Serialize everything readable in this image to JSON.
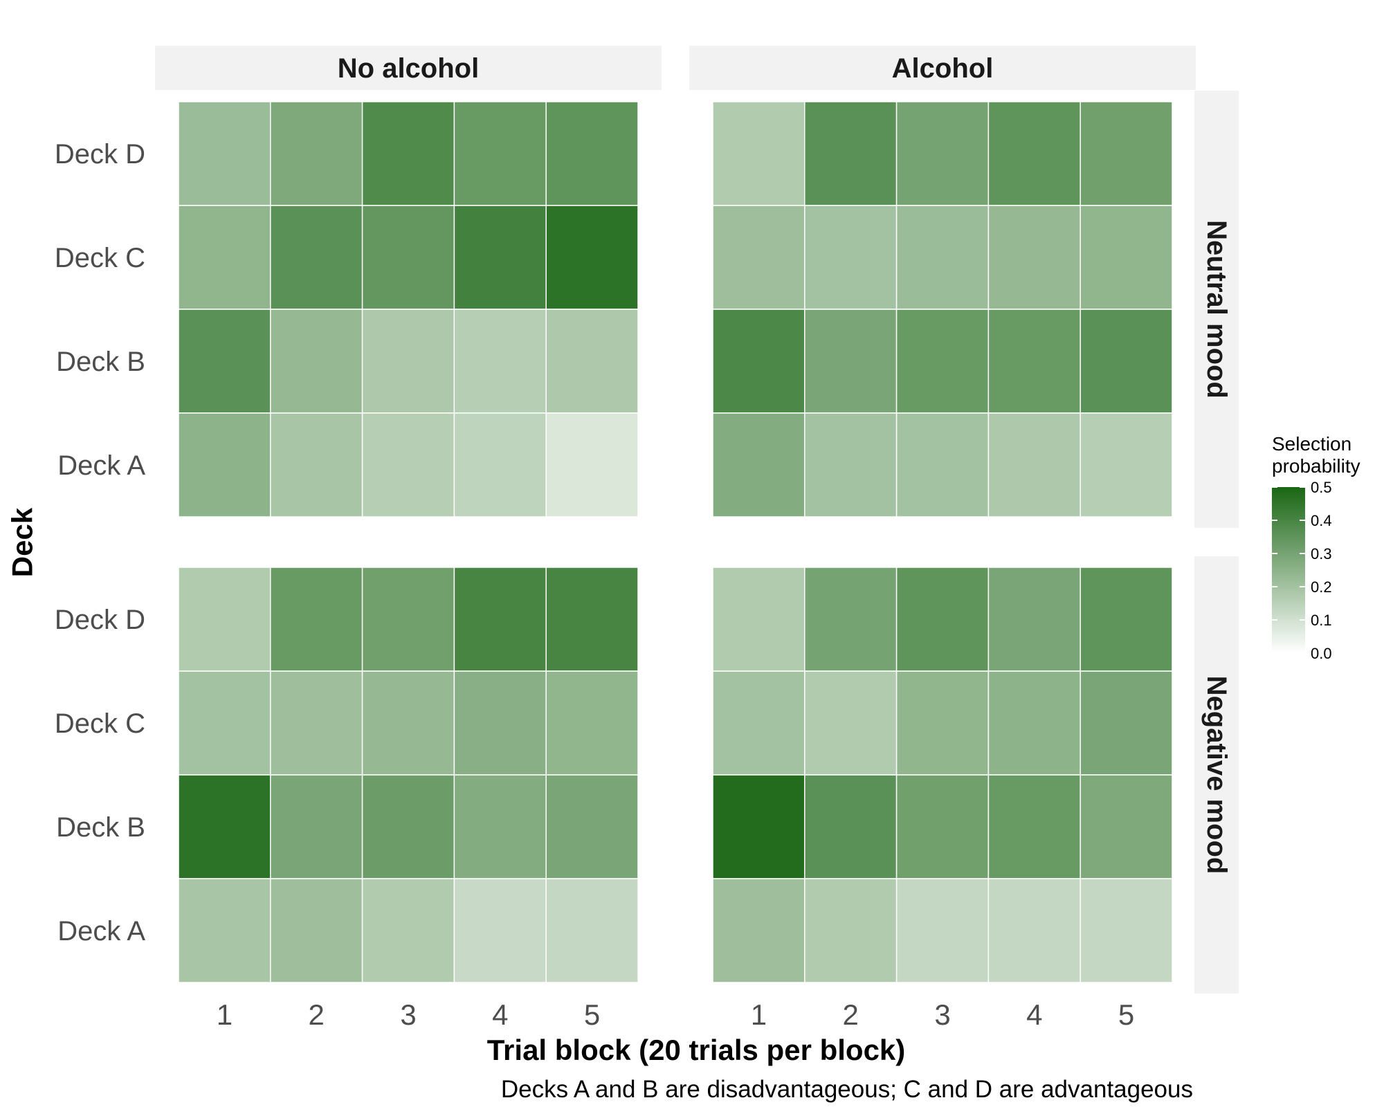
{
  "chart_data": {
    "type": "heatmap",
    "column_facets": [
      "No alcohol",
      "Alcohol"
    ],
    "row_facets": [
      "Neutral mood",
      "Negative mood"
    ],
    "x": [
      1,
      2,
      3,
      4,
      5
    ],
    "x_tick_labels": [
      "1",
      "2",
      "3",
      "4",
      "5"
    ],
    "y_categories": [
      "Deck D",
      "Deck C",
      "Deck B",
      "Deck A"
    ],
    "xlabel": "Trial block (20 trials per block)",
    "ylabel": "Deck",
    "caption": "Decks A and B are disadvantageous; C and D are advantageous",
    "legend": {
      "title_lines": [
        "Selection",
        "probability"
      ],
      "min": 0.0,
      "max": 0.5,
      "ticks": [
        0.5,
        0.4,
        0.3,
        0.2,
        0.1,
        0.0
      ],
      "tick_labels": [
        "0.5",
        "0.4",
        "0.3",
        "0.2",
        "0.1",
        "0.0"
      ],
      "placement": "right",
      "color_low": "#ffffff",
      "color_high": "#1a6614"
    },
    "grid": false,
    "panels": [
      {
        "row": "Neutral mood",
        "col": "No alcohol",
        "values": {
          "Deck D": [
            0.22,
            0.28,
            0.38,
            0.33,
            0.35
          ],
          "Deck C": [
            0.24,
            0.36,
            0.34,
            0.41,
            0.46
          ],
          "Deck B": [
            0.36,
            0.23,
            0.18,
            0.16,
            0.18
          ],
          "Deck A": [
            0.25,
            0.19,
            0.16,
            0.14,
            0.08
          ]
        }
      },
      {
        "row": "Neutral mood",
        "col": "Alcohol",
        "values": {
          "Deck D": [
            0.17,
            0.36,
            0.3,
            0.35,
            0.31
          ],
          "Deck C": [
            0.21,
            0.2,
            0.22,
            0.23,
            0.24
          ],
          "Deck B": [
            0.39,
            0.29,
            0.33,
            0.33,
            0.36
          ],
          "Deck A": [
            0.27,
            0.2,
            0.2,
            0.18,
            0.16
          ]
        }
      },
      {
        "row": "Negative mood",
        "col": "No alcohol",
        "values": {
          "Deck D": [
            0.17,
            0.33,
            0.31,
            0.4,
            0.4
          ],
          "Deck C": [
            0.2,
            0.21,
            0.23,
            0.26,
            0.24
          ],
          "Deck B": [
            0.46,
            0.29,
            0.32,
            0.27,
            0.29
          ],
          "Deck A": [
            0.19,
            0.21,
            0.17,
            0.12,
            0.13
          ]
        }
      },
      {
        "row": "Negative mood",
        "col": "Alcohol",
        "values": {
          "Deck D": [
            0.17,
            0.3,
            0.35,
            0.29,
            0.35
          ],
          "Deck C": [
            0.2,
            0.17,
            0.24,
            0.25,
            0.29
          ],
          "Deck B": [
            0.48,
            0.36,
            0.31,
            0.33,
            0.28
          ],
          "Deck A": [
            0.21,
            0.17,
            0.13,
            0.13,
            0.13
          ]
        }
      }
    ]
  }
}
